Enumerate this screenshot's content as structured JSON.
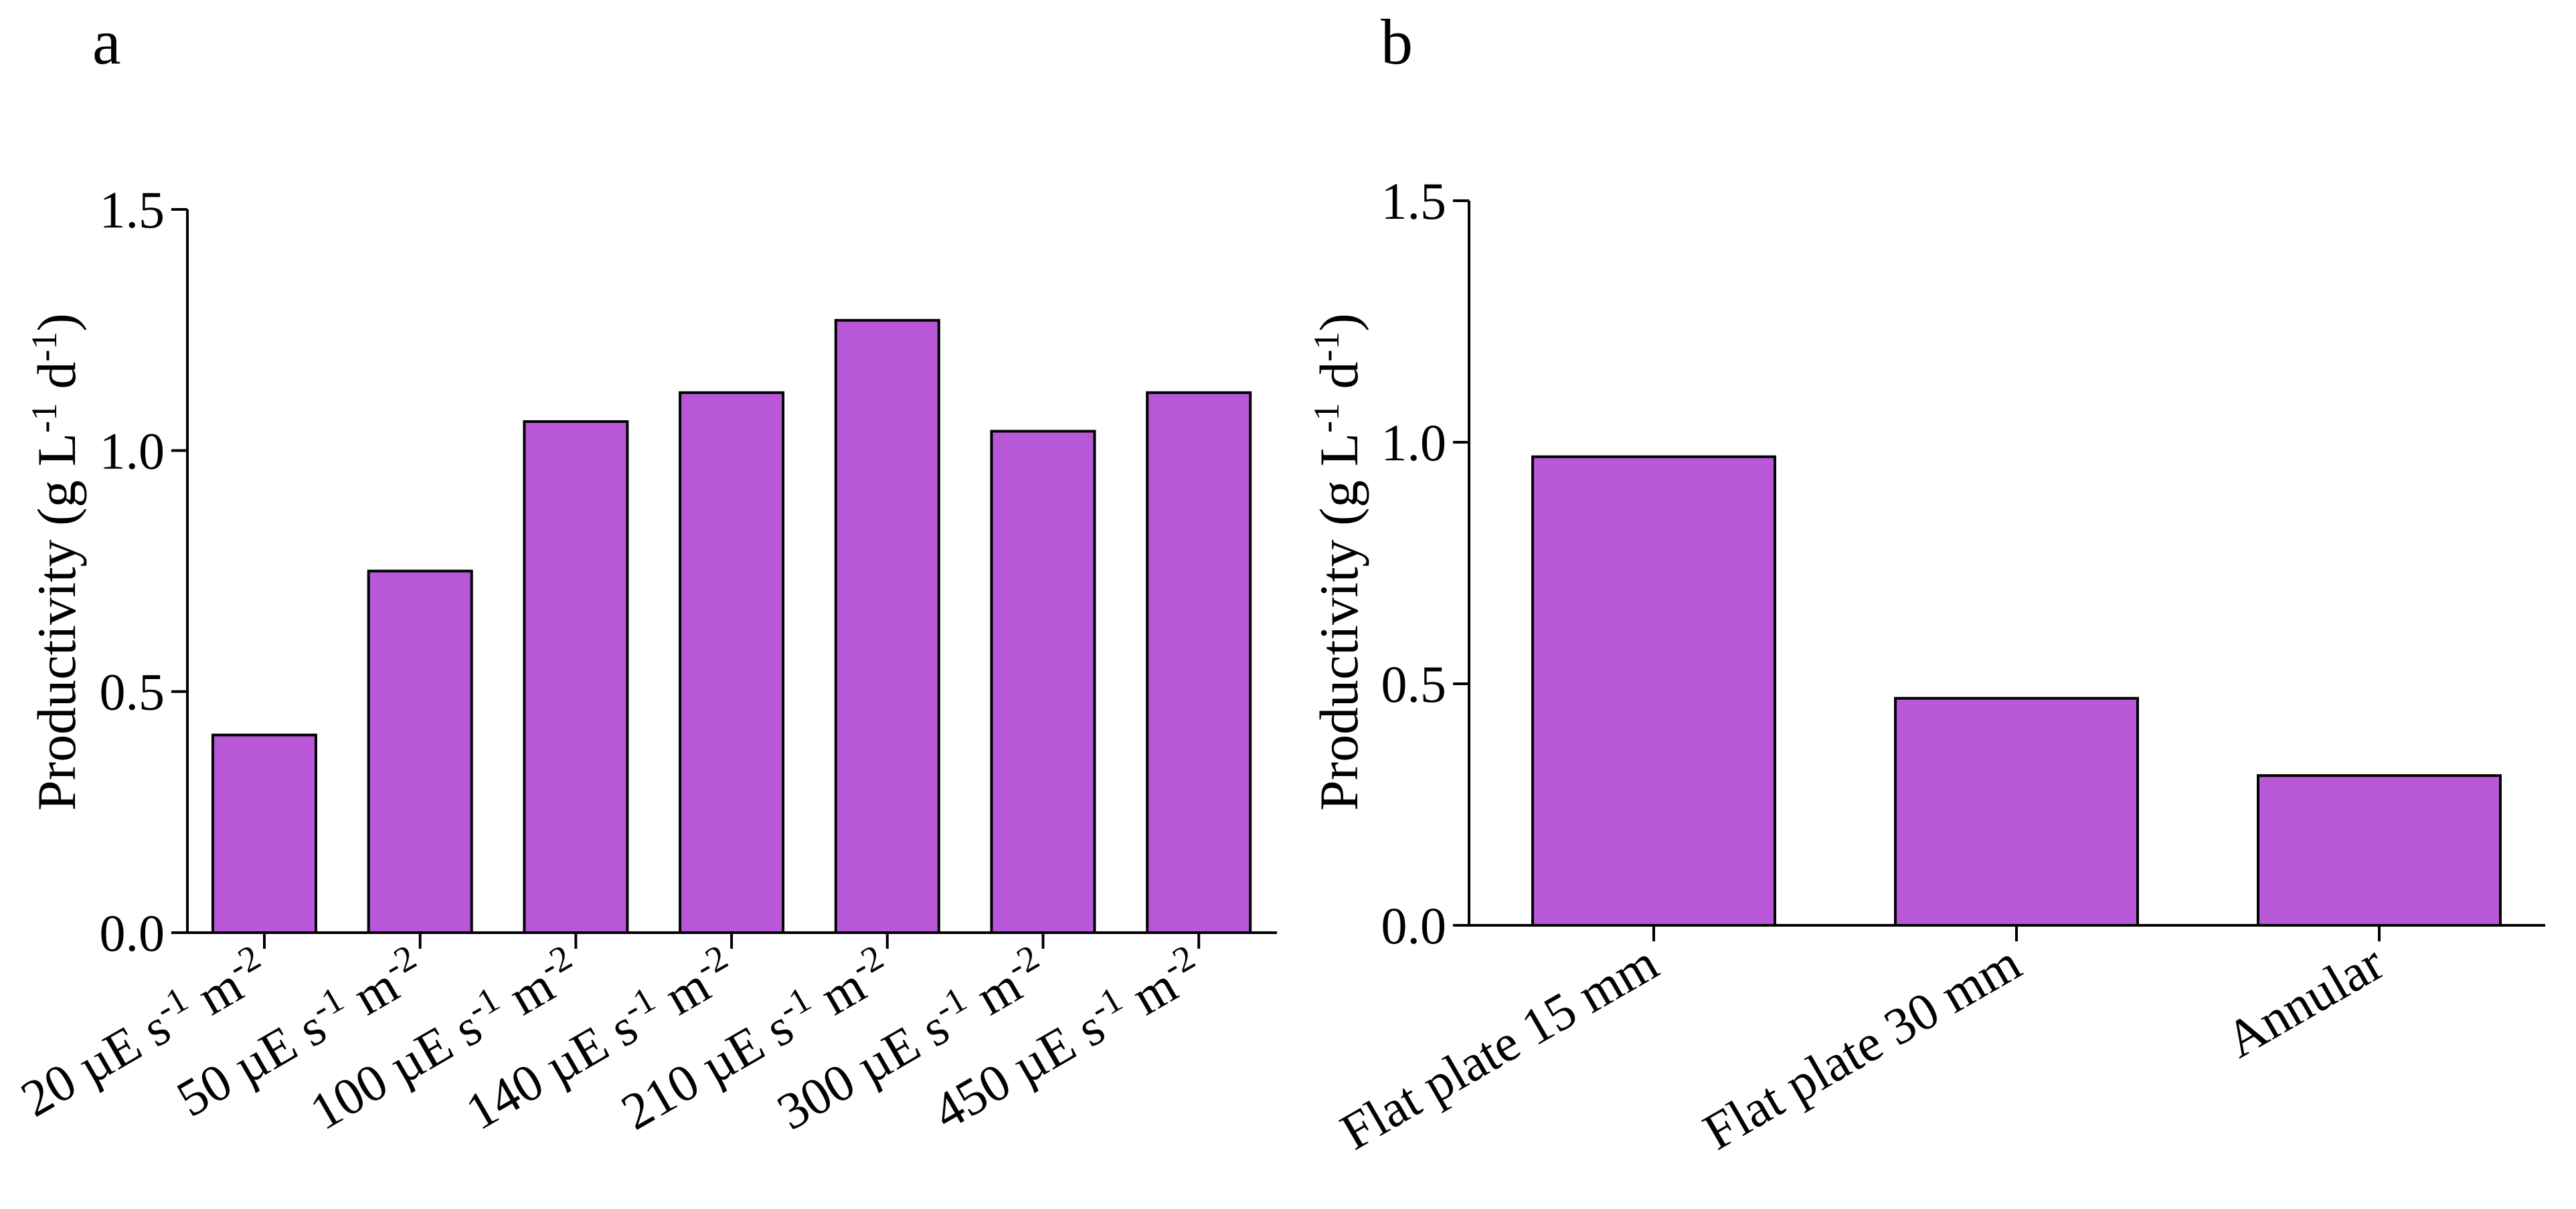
{
  "chart_data": [
    {
      "panel_label": "a",
      "type": "bar",
      "title": "",
      "xlabel": "",
      "ylabel": "Productivity (g L-1 d-1)",
      "ylabel_parts": {
        "main": "Productivity (g L",
        "sup1": "-1",
        "mid": " d",
        "sup2": "-1",
        "end": ")"
      },
      "ylim": [
        0,
        1.5
      ],
      "yticks": [
        "0.0",
        "0.5",
        "1.0",
        "1.5"
      ],
      "ytick_values": [
        0,
        0.5,
        1.0,
        1.5
      ],
      "categories": [
        "20 µE s-1 m-2",
        "50 µE s-1 m-2",
        "100 µE s-1 m-2",
        "140 µE s-1 m-2",
        "210 µE s-1 m-2",
        "300 µE s-1 m-2",
        "450 µE s-1 m-2"
      ],
      "category_parts": [
        {
          "lead": "20 µE s",
          "sup1": "-1",
          "mid": " m",
          "sup2": "-2"
        },
        {
          "lead": "50 µE s",
          "sup1": "-1",
          "mid": " m",
          "sup2": "-2"
        },
        {
          "lead": "100 µE s",
          "sup1": "-1",
          "mid": " m",
          "sup2": "-2"
        },
        {
          "lead": "140 µE s",
          "sup1": "-1",
          "mid": " m",
          "sup2": "-2"
        },
        {
          "lead": "210 µE s",
          "sup1": "-1",
          "mid": " m",
          "sup2": "-2"
        },
        {
          "lead": "300 µE s",
          "sup1": "-1",
          "mid": " m",
          "sup2": "-2"
        },
        {
          "lead": "450 µE s",
          "sup1": "-1",
          "mid": " m",
          "sup2": "-2"
        }
      ],
      "values": [
        0.41,
        0.75,
        1.06,
        1.12,
        1.27,
        1.04,
        1.12
      ],
      "bar_color": "#b858d8",
      "edge_color": "#000000"
    },
    {
      "panel_label": "b",
      "type": "bar",
      "title": "",
      "xlabel": "",
      "ylabel": "Productivity (g L-1 d-1)",
      "ylabel_parts": {
        "main": "Productivity (g L",
        "sup1": "-1",
        "mid": " d",
        "sup2": "-1",
        "end": ")"
      },
      "ylim": [
        0,
        1.5
      ],
      "yticks": [
        "0.0",
        "0.5",
        "1.0",
        "1.5"
      ],
      "ytick_values": [
        0,
        0.5,
        1.0,
        1.5
      ],
      "categories": [
        "Flat plate 15 mm",
        "Flat plate 30 mm",
        "Annular"
      ],
      "values": [
        0.97,
        0.47,
        0.31
      ],
      "bar_color": "#b858d8",
      "edge_color": "#000000"
    }
  ]
}
